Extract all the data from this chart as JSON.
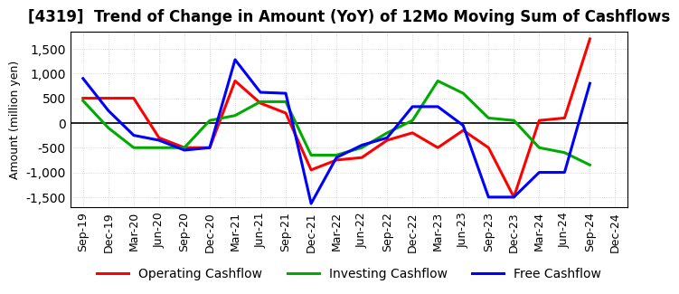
{
  "title": "[4319]  Trend of Change in Amount (YoY) of 12Mo Moving Sum of Cashflows",
  "ylabel": "Amount (million yen)",
  "x_labels": [
    "Sep-19",
    "Dec-19",
    "Mar-20",
    "Jun-20",
    "Sep-20",
    "Dec-20",
    "Mar-21",
    "Jun-21",
    "Sep-21",
    "Dec-21",
    "Mar-22",
    "Jun-22",
    "Sep-22",
    "Dec-22",
    "Mar-23",
    "Jun-23",
    "Sep-23",
    "Dec-23",
    "Mar-24",
    "Jun-24",
    "Sep-24",
    "Dec-24"
  ],
  "operating": [
    500,
    500,
    500,
    -300,
    -500,
    -500,
    850,
    400,
    200,
    -950,
    -750,
    -700,
    -350,
    -200,
    -500,
    -150,
    -500,
    -1500,
    50,
    100,
    1700,
    null
  ],
  "investing": [
    450,
    -100,
    -500,
    -500,
    -500,
    50,
    150,
    430,
    430,
    -650,
    -650,
    -500,
    -200,
    50,
    850,
    600,
    100,
    50,
    -500,
    -600,
    -850,
    null
  ],
  "free": [
    900,
    250,
    -250,
    -350,
    -550,
    -500,
    1280,
    620,
    600,
    -1630,
    -700,
    -450,
    -300,
    330,
    330,
    -50,
    -1500,
    -1500,
    -1000,
    -1000,
    800,
    null
  ],
  "operating_color": "#ff0000",
  "investing_color": "#00aa00",
  "free_color": "#0000ff",
  "ylim": [
    -1700,
    1850
  ],
  "yticks": [
    -1500,
    -1000,
    -500,
    0,
    500,
    1000,
    1500
  ],
  "background_color": "#ffffff",
  "grid_color": "#bbbbbb",
  "title_fontsize": 12,
  "axis_fontsize": 9,
  "legend_fontsize": 10,
  "line_width": 2.2
}
